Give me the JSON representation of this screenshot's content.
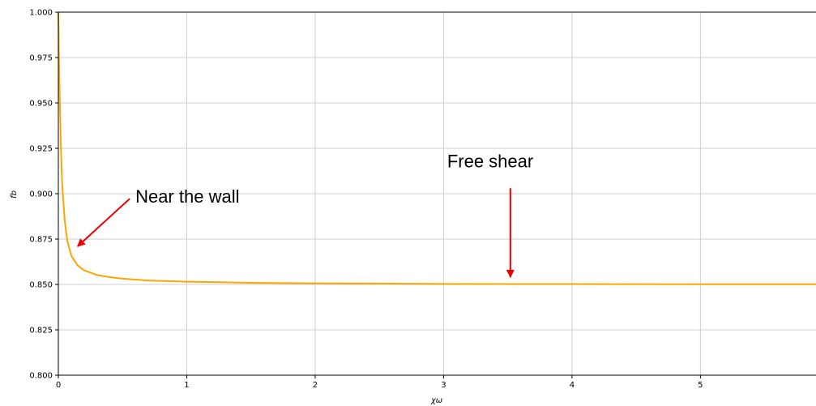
{
  "chart_data": {
    "type": "line",
    "xlabel": "χω",
    "ylabel": "fb",
    "xlim": [
      0,
      5.9
    ],
    "ylim": [
      0.8,
      1.0
    ],
    "grid": true,
    "x_ticks": [
      0,
      1,
      2,
      3,
      4,
      5
    ],
    "y_ticks": [
      0.8,
      0.825,
      0.85,
      0.875,
      0.9,
      0.925,
      0.95,
      0.975,
      1.0
    ],
    "y_tick_labels": [
      "0.800",
      "0.825",
      "0.850",
      "0.875",
      "0.900",
      "0.925",
      "0.950",
      "0.975",
      "1.000"
    ],
    "series": [
      {
        "color": "#ffa500",
        "x": [
          0.0,
          0.005,
          0.01,
          0.02,
          0.03,
          0.05,
          0.07,
          0.1,
          0.15,
          0.2,
          0.3,
          0.4,
          0.5,
          0.7,
          1.0,
          1.5,
          2.0,
          3.0,
          4.0,
          5.0,
          5.9
        ],
        "y": [
          1.0,
          0.975,
          0.955,
          0.925,
          0.905,
          0.885,
          0.874,
          0.866,
          0.8605,
          0.8578,
          0.8552,
          0.854,
          0.8532,
          0.8522,
          0.8515,
          0.8509,
          0.8506,
          0.8503,
          0.8502,
          0.8501,
          0.8501
        ]
      }
    ],
    "annotations": [
      {
        "text": "Near the wall",
        "xy": [
          0.15,
          0.871
        ],
        "xytext": [
          0.6,
          0.895
        ]
      },
      {
        "text": "Free shear",
        "xy": [
          3.52,
          0.854
        ],
        "xytext": [
          3.52,
          0.903
        ]
      }
    ]
  }
}
